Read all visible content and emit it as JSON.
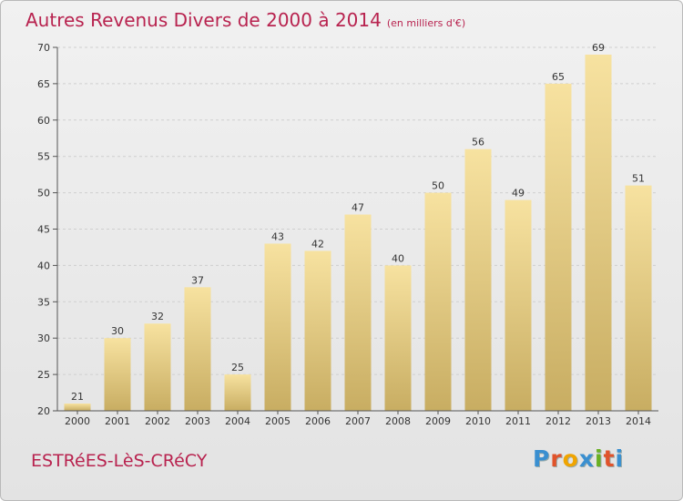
{
  "header": {
    "title": "Autres Revenus Divers de 2000 à 2014",
    "subtitle": "(en milliers d'€)"
  },
  "footer": {
    "commune": "ESTRéES-LèS-CRéCY",
    "logo_text": "Proxiti",
    "logo_letters": [
      "P",
      "r",
      "o",
      "x",
      "i",
      "t",
      "i"
    ],
    "logo_colors": [
      "#3a8fd0",
      "#e0532b",
      "#f0a400",
      "#3a8fd0",
      "#6ab023",
      "#e0532b",
      "#3a8fd0"
    ]
  },
  "colors": {
    "title": "#b8234f",
    "bar_light": "#f7e2a0",
    "bar_dark": "#c8ad62",
    "grid": "#cfcfcf",
    "axis": "#555555"
  },
  "chart_data": {
    "type": "bar",
    "title": "Autres Revenus Divers de 2000 à 2014",
    "xlabel": "",
    "ylabel": "",
    "categories": [
      "2000",
      "2001",
      "2002",
      "2003",
      "2004",
      "2005",
      "2006",
      "2007",
      "2008",
      "2009",
      "2010",
      "2011",
      "2012",
      "2013",
      "2014"
    ],
    "values": [
      21,
      30,
      32,
      37,
      25,
      43,
      42,
      47,
      40,
      50,
      56,
      49,
      65,
      69,
      51
    ],
    "ylim": [
      20,
      70
    ],
    "yticks": [
      20,
      25,
      30,
      35,
      40,
      45,
      50,
      55,
      60,
      65,
      70
    ],
    "grid": true
  }
}
